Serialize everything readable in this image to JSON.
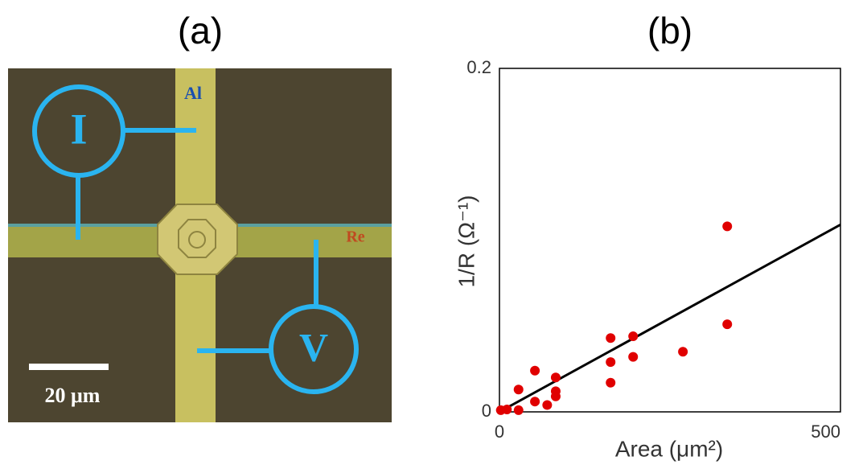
{
  "image_panel": {
    "label": "(a)",
    "wire_top": "Al",
    "wire_right": "Re",
    "meter_current": "I",
    "meter_voltage": "V",
    "scale_bar": "20 μm"
  },
  "chart_data": {
    "type": "scatter",
    "title": "(b)",
    "x_label": "Area (μm²)",
    "y_label": "1/R (Ω⁻¹)",
    "xlim": [
      0,
      500
    ],
    "ylim": [
      0,
      0.2
    ],
    "xticks": [
      0,
      500
    ],
    "yticks": [
      0,
      0.2
    ],
    "points": {
      "color": "#e00000",
      "x": [
        334,
        334,
        269,
        196,
        196,
        163,
        163,
        163,
        82.5,
        82.5,
        82.5,
        52,
        52,
        70,
        28,
        28,
        11,
        2
      ],
      "y": [
        0.108,
        0.051,
        0.035,
        0.044,
        0.032,
        0.043,
        0.029,
        0.017,
        0.02,
        0.012,
        0.009,
        0.024,
        0.006,
        0.004,
        0.013,
        0.001,
        0.0014,
        0.001
      ]
    },
    "fit_line": {
      "color": "#000000",
      "x": [
        0,
        500
      ],
      "y": [
        0,
        0.109
      ]
    }
  }
}
